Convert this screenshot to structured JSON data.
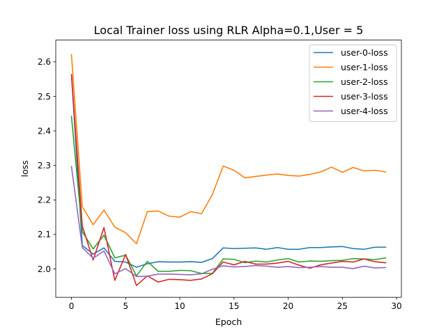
{
  "chart_data": {
    "type": "line",
    "title": "Local Trainer loss using RLR  Alpha=0.1,User = 5",
    "xlabel": "Epoch",
    "ylabel": "loss",
    "xlim": [
      -1.45,
      30.45
    ],
    "ylim": [
      1.918,
      2.663
    ],
    "xticks": [
      0,
      5,
      10,
      15,
      20,
      25,
      30
    ],
    "yticks": [
      2.0,
      2.1,
      2.2,
      2.3,
      2.4,
      2.5,
      2.6
    ],
    "ytick_labels": [
      "2.0",
      "2.1",
      "2.2",
      "2.3",
      "2.4",
      "2.5",
      "2.6"
    ],
    "grid": false,
    "legend_position": "top-right",
    "x": [
      0,
      1,
      2,
      3,
      4,
      5,
      6,
      7,
      8,
      9,
      10,
      11,
      12,
      13,
      14,
      15,
      16,
      17,
      18,
      19,
      20,
      21,
      22,
      23,
      24,
      25,
      26,
      27,
      28,
      29
    ],
    "series": [
      {
        "name": "user-0-loss",
        "color": "#1f77b4",
        "values": [
          2.563,
          2.068,
          2.043,
          2.061,
          2.022,
          2.02,
          2.005,
          2.015,
          2.021,
          2.02,
          2.02,
          2.021,
          2.019,
          2.03,
          2.061,
          2.059,
          2.06,
          2.061,
          2.057,
          2.062,
          2.057,
          2.057,
          2.062,
          2.062,
          2.064,
          2.065,
          2.059,
          2.057,
          2.063,
          2.063
        ]
      },
      {
        "name": "user-1-loss",
        "color": "#ff7f0e",
        "values": [
          2.621,
          2.181,
          2.128,
          2.171,
          2.121,
          2.105,
          2.073,
          2.166,
          2.168,
          2.153,
          2.15,
          2.166,
          2.16,
          2.215,
          2.298,
          2.286,
          2.264,
          2.268,
          2.272,
          2.275,
          2.271,
          2.269,
          2.274,
          2.281,
          2.295,
          2.28,
          2.294,
          2.284,
          2.286,
          2.281
        ]
      },
      {
        "name": "user-2-loss",
        "color": "#2ca02c",
        "values": [
          2.442,
          2.108,
          2.058,
          2.098,
          2.032,
          2.04,
          1.98,
          2.022,
          1.993,
          1.993,
          1.996,
          1.995,
          1.987,
          1.987,
          2.029,
          2.028,
          2.018,
          2.023,
          2.02,
          2.026,
          2.03,
          2.02,
          2.023,
          2.022,
          2.024,
          2.025,
          2.03,
          2.029,
          2.027,
          2.032
        ]
      },
      {
        "name": "user-3-loss",
        "color": "#d62728",
        "values": [
          2.563,
          2.124,
          2.026,
          2.12,
          1.967,
          2.042,
          1.952,
          1.98,
          1.962,
          1.97,
          1.969,
          1.967,
          1.971,
          1.986,
          2.02,
          2.012,
          2.022,
          2.014,
          2.014,
          2.017,
          2.022,
          2.011,
          2.002,
          2.012,
          2.017,
          2.022,
          2.02,
          2.029,
          2.021,
          2.018
        ]
      },
      {
        "name": "user-4-loss",
        "color": "#9467bd",
        "values": [
          2.297,
          2.062,
          2.031,
          2.052,
          1.986,
          2.001,
          1.978,
          1.979,
          1.985,
          1.985,
          1.984,
          1.983,
          1.986,
          1.999,
          2.009,
          2.006,
          2.007,
          2.01,
          2.008,
          2.005,
          2.007,
          2.004,
          2.005,
          2.007,
          2.005,
          2.005,
          2.001,
          2.008,
          2.003,
          2.004
        ]
      }
    ]
  }
}
